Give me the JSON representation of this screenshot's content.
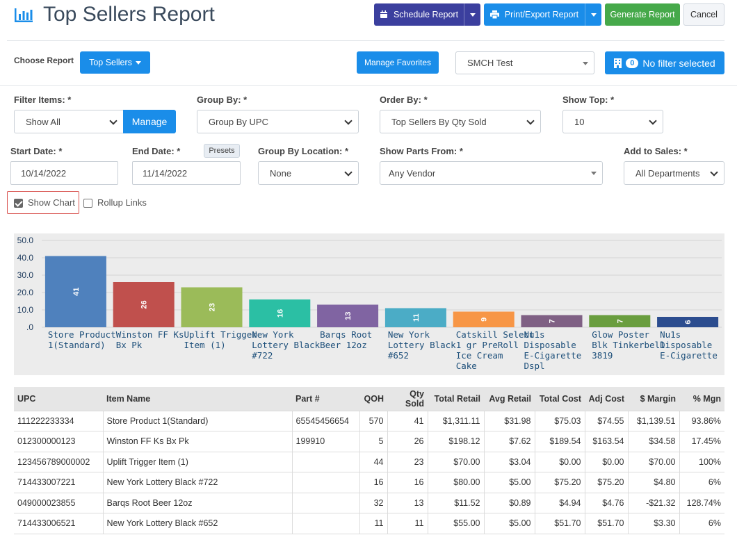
{
  "header": {
    "title": "Top Sellers Report",
    "schedule_label": "Schedule Report",
    "print_label": "Print/Export Report",
    "generate_label": "Generate Report",
    "cancel_label": "Cancel"
  },
  "toolbar": {
    "choose_report_label": "Choose Report",
    "report_type": "Top Sellers",
    "manage_favorites_label": "Manage Favorites",
    "store": "SMCH Test",
    "filter_count": "0",
    "filter_label": "No filter selected"
  },
  "filters": {
    "filter_items_label": "Filter Items: *",
    "filter_items_value": "Show All",
    "manage_label": "Manage",
    "group_by_label": "Group By: *",
    "group_by_value": "Group By UPC",
    "order_by_label": "Order By: *",
    "order_by_value": "Top Sellers By Qty Sold",
    "show_top_label": "Show Top: *",
    "show_top_value": "10",
    "start_date_label": "Start Date: *",
    "start_date_value": "10/14/2022",
    "end_date_label": "End Date: *",
    "presets_label": "Presets",
    "end_date_value": "11/14/2022",
    "group_by_location_label": "Group By Location: *",
    "group_by_location_value": "None",
    "show_parts_from_label": "Show Parts From: *",
    "show_parts_from_value": "Any Vendor",
    "add_to_sales_label": "Add to Sales: *",
    "add_to_sales_value": "All Departments",
    "show_chart_label": "Show Chart",
    "show_chart_checked": true,
    "rollup_links_label": "Rollup Links",
    "rollup_links_checked": false
  },
  "colors": {
    "navy": "#3b3f9e",
    "blue": "#1a8de9",
    "green": "#46a94a",
    "highlight_border": "#d9534f"
  },
  "chart_data": {
    "type": "bar",
    "ylim": [
      0,
      50
    ],
    "ytick_labels": [
      ".0",
      "10.0",
      "20.0",
      "30.0",
      "40.0",
      "50.0"
    ],
    "categories": [
      [
        "Store Product",
        "1(Standard)"
      ],
      [
        "Winston FF Ks",
        "Bx Pk"
      ],
      [
        "Uplift Trigger",
        "Item (1)"
      ],
      [
        "New York",
        "Lottery Black",
        "#722"
      ],
      [
        "Barqs Root",
        "Beer 12oz"
      ],
      [
        "New York",
        "Lottery Black",
        "#652"
      ],
      [
        "Catskill Select",
        "1 gr PreRoll",
        "Ice Cream",
        "Cake"
      ],
      [
        "Nu1s",
        "Disposable",
        "E-Cigarette",
        "Dspl"
      ],
      [
        "Glow Poster",
        "Blk Tinkerbell",
        "3819"
      ],
      [
        "Nu1s",
        "Disposable",
        "E-Cigarette"
      ]
    ],
    "values": [
      41,
      26,
      23,
      16,
      13,
      11,
      9,
      7,
      7,
      6
    ],
    "colors": [
      "#4f81bd",
      "#c0504d",
      "#9bbb59",
      "#2bbfa4",
      "#8064a2",
      "#4bacc6",
      "#f79646",
      "#7f6084",
      "#6a9e3f",
      "#2c4d8f"
    ],
    "grid": true
  },
  "table": {
    "columns": [
      "UPC",
      "Item Name",
      "Part #",
      "QOH",
      "Qty Sold",
      "Total Retail",
      "Avg Retail",
      "Total Cost",
      "Adj Cost",
      "$ Margin",
      "% Mgn"
    ],
    "rows": [
      [
        "111222233334",
        "Store Product 1(Standard)",
        "65545456654",
        "570",
        "41",
        "$1,311.11",
        "$31.98",
        "$75.03",
        "$74.55",
        "$1,139.51",
        "93.86%"
      ],
      [
        "012300000123",
        "Winston FF Ks Bx Pk",
        "199910",
        "5",
        "26",
        "$198.12",
        "$7.62",
        "$189.54",
        "$163.54",
        "$34.58",
        "17.45%"
      ],
      [
        "123456789000002",
        "Uplift Trigger Item (1)",
        "",
        "44",
        "23",
        "$70.00",
        "$3.04",
        "$0.00",
        "$0.00",
        "$70.00",
        "100%"
      ],
      [
        "714433007221",
        "New York Lottery Black #722",
        "",
        "16",
        "16",
        "$80.00",
        "$5.00",
        "$75.20",
        "$75.20",
        "$4.80",
        "6%"
      ],
      [
        "049000023855",
        "Barqs Root Beer 12oz",
        "",
        "32",
        "13",
        "$11.52",
        "$0.89",
        "$4.94",
        "$4.76",
        "-$21.32",
        "128.74%"
      ],
      [
        "714433006521",
        "New York Lottery Black #652",
        "",
        "11",
        "11",
        "$55.00",
        "$5.00",
        "$51.70",
        "$51.70",
        "$3.30",
        "6%"
      ]
    ]
  }
}
